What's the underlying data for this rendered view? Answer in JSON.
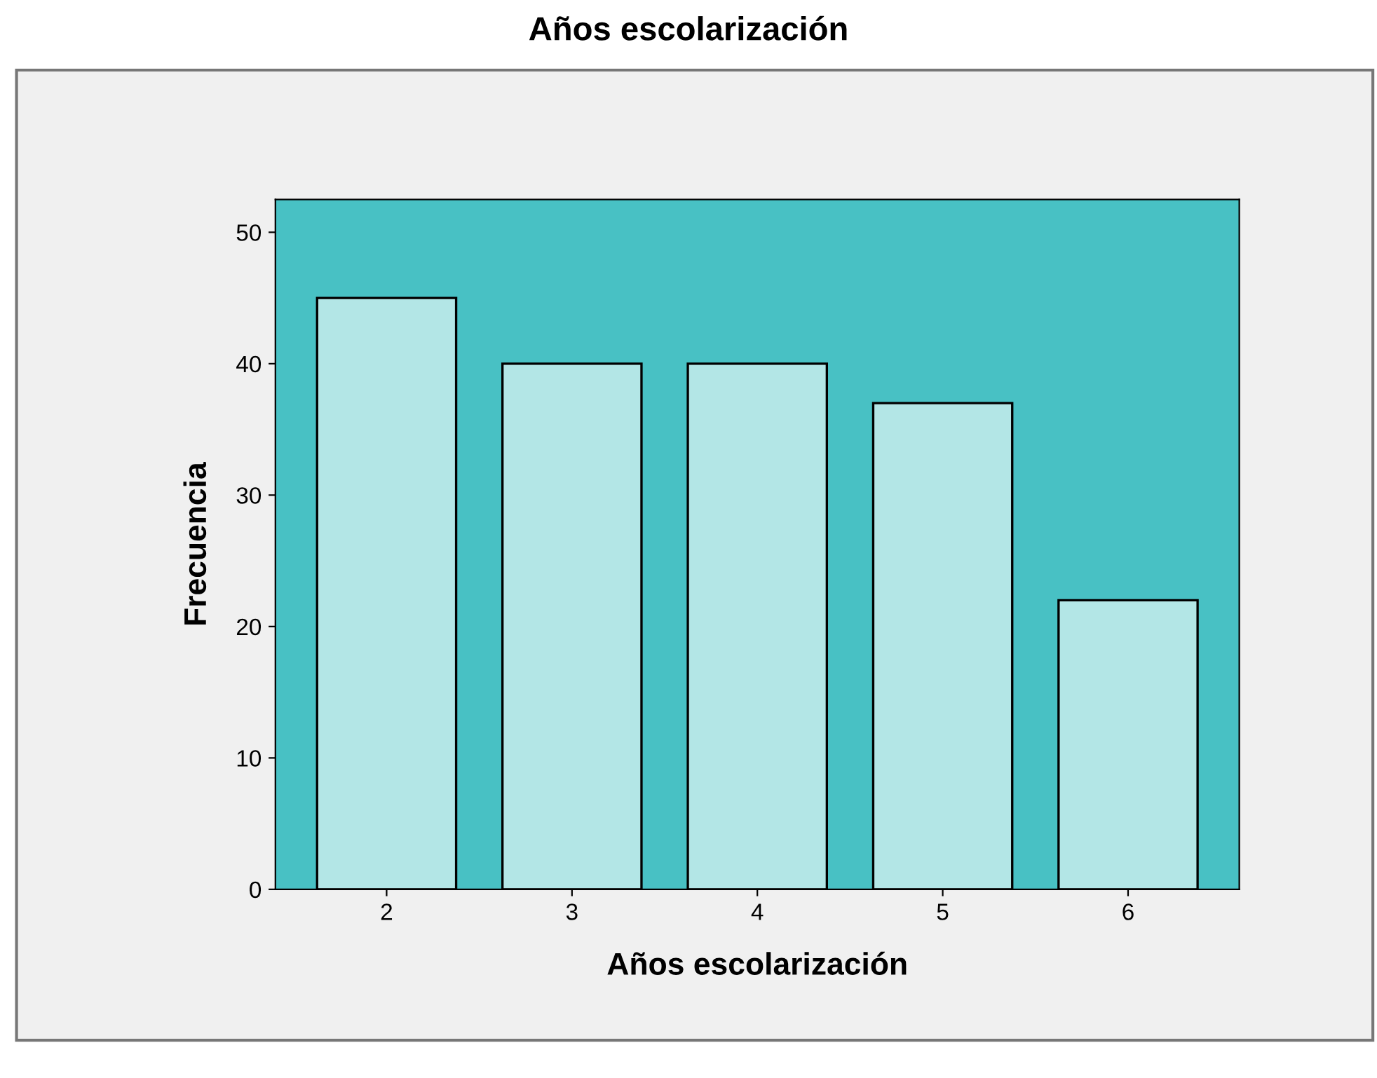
{
  "chart_data": {
    "type": "bar",
    "title": "Años escolarización",
    "xlabel": "Años escolarización",
    "ylabel": "Frecuencia",
    "categories": [
      "2",
      "3",
      "4",
      "5",
      "6"
    ],
    "values": [
      45,
      40,
      40,
      37,
      22
    ],
    "color": "#b3e6e6",
    "bands": [
      {
        "axis": "y",
        "from": 0,
        "to": 52.5,
        "color": "#48c1c4"
      }
    ],
    "ylim": [
      0,
      52.5
    ],
    "yticks": [
      0,
      10,
      20,
      30,
      40,
      50
    ],
    "grid": false
  }
}
